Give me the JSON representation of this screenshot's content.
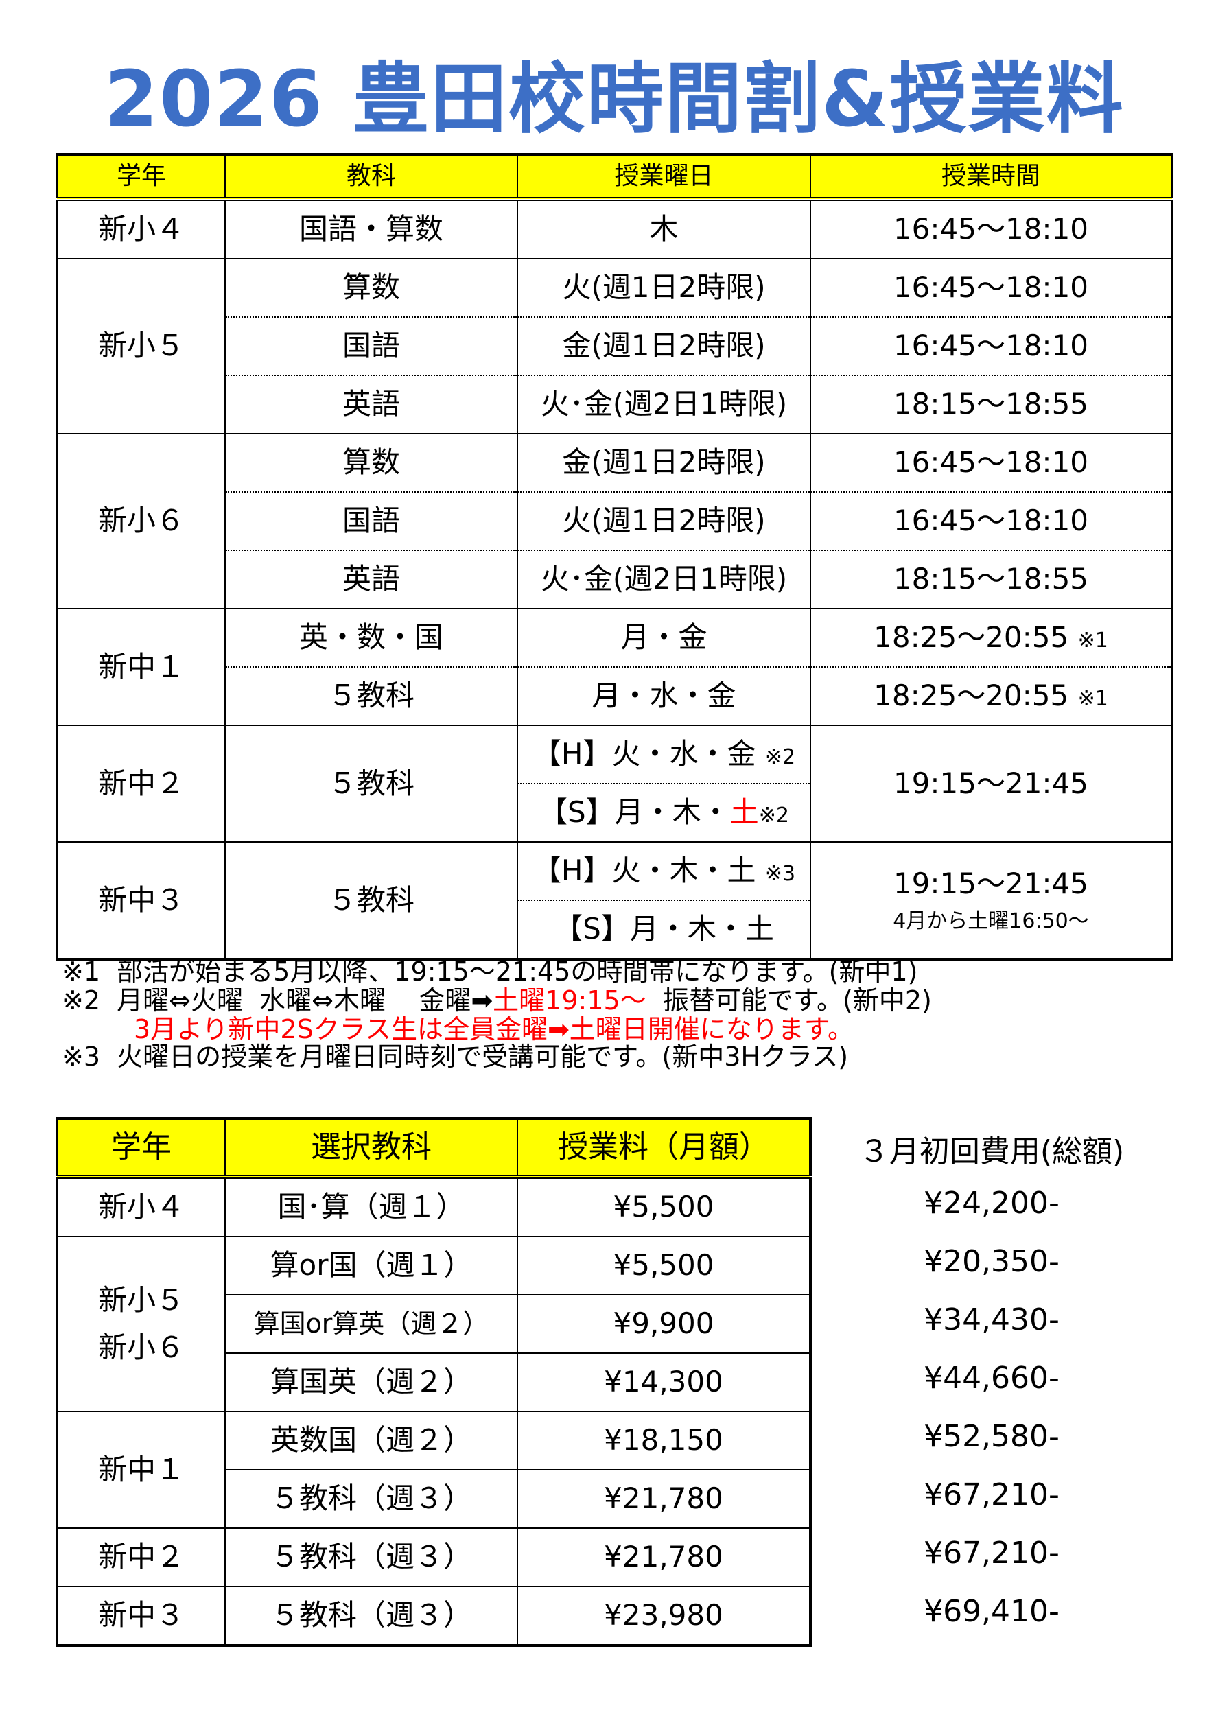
{
  "title": "2026 豊田校時間割&授業料",
  "schedule": {
    "headers": [
      "学年",
      "教科",
      "授業曜日",
      "授業時間"
    ],
    "rows": {
      "e4": {
        "grade": "新小４",
        "subject": "国語・算数",
        "day": "木",
        "time": "16:45～18:10"
      },
      "e5": {
        "grade": "新小５",
        "r1": {
          "subject": "算数",
          "day": "火(週1日2時限)",
          "time": "16:45～18:10"
        },
        "r2": {
          "subject": "国語",
          "day": "金(週1日2時限)",
          "time": "16:45～18:10"
        },
        "r3": {
          "subject": "英語",
          "day": "火･金(週2日1時限)",
          "time": "18:15～18:55"
        }
      },
      "e6": {
        "grade": "新小６",
        "r1": {
          "subject": "算数",
          "day": "金(週1日2時限)",
          "time": "16:45～18:10"
        },
        "r2": {
          "subject": "国語",
          "day": "火(週1日2時限)",
          "time": "16:45～18:10"
        },
        "r3": {
          "subject": "英語",
          "day": "火･金(週2日1時限)",
          "time": "18:15～18:55"
        }
      },
      "j1": {
        "grade": "新中１",
        "r1": {
          "subject": "英・数・国",
          "day": "月・金",
          "time": "18:25～20:55",
          "mark": "※1"
        },
        "r2": {
          "subject": "５教科",
          "day": "月・水・金",
          "time": "18:25～20:55",
          "mark": "※1"
        }
      },
      "j2": {
        "grade": "新中２",
        "subject": "５教科",
        "h_day": "【H】火・水・金",
        "h_mark": "※2",
        "s_day_a": "【S】月・木・",
        "s_day_red": "土",
        "s_mark": "※2",
        "time": "19:15～21:45"
      },
      "j3": {
        "grade": "新中３",
        "subject": "５教科",
        "h_day": "【H】火・木・土",
        "h_mark": "※3",
        "s_day": "【S】月・木・土",
        "time": "19:15～21:45",
        "time_note": "4月から土曜16:50～"
      }
    }
  },
  "notes": {
    "n1": "※1  部活が始まる5月以降、19:15～21:45の時間帯になります。(新中1)",
    "n2a": "※2  月曜⇔火曜  水曜⇔木曜    金曜➡",
    "n2red": "土曜19:15～",
    "n2b": "  振替可能です。(新中2)",
    "n2c": "3月より新中2Sクラス生は全員金曜➡土曜日開催になります。",
    "n3": "※3  火曜日の授業を月曜日同時刻で受講可能です。(新中3Hクラス)"
  },
  "fees": {
    "headers": [
      "学年",
      "選択教科",
      "授業料（月額）"
    ],
    "initial_header": "３月初回費用(総額)",
    "rows": [
      {
        "grade": "新小４",
        "subject": "国･算（週１）",
        "fee": "¥5,500",
        "initial": "¥24,200-"
      },
      {
        "grade": "新小５\n新小６",
        "grade_a": "新小５",
        "grade_b": "新小６",
        "subject": "算or国（週１）",
        "fee": "¥5,500",
        "initial": "¥20,350-"
      },
      {
        "subject": "算国or算英（週２）",
        "fee": "¥9,900",
        "initial": "¥34,430-"
      },
      {
        "subject": "算国英（週２）",
        "fee": "¥14,300",
        "initial": "¥44,660-"
      },
      {
        "grade": "新中１",
        "subject": "英数国（週２）",
        "fee": "¥18,150",
        "initial": "¥52,580-"
      },
      {
        "subject": "５教科（週３）",
        "fee": "¥21,780",
        "initial": "¥67,210-"
      },
      {
        "grade": "新中２",
        "subject": "５教科（週３）",
        "fee": "¥21,780",
        "initial": "¥67,210-"
      },
      {
        "grade": "新中３",
        "subject": "５教科（週３）",
        "fee": "¥23,980",
        "initial": "¥69,410-"
      }
    ]
  },
  "colors": {
    "title": "#3d6fc6",
    "header_bg": "#ffff00",
    "highlight": "#ff0000"
  }
}
